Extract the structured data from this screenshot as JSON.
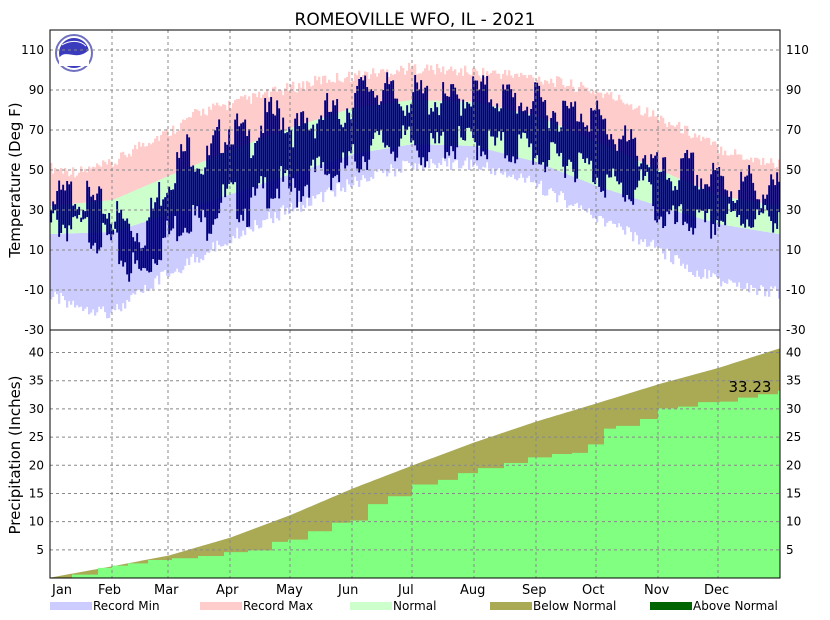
{
  "chart_data": [
    {
      "type": "bar",
      "title": "ROMEOVILLE  WFO, IL - 2021",
      "ylabel": "Temperature (Deg F)",
      "ylim": [
        -30,
        120
      ],
      "yticks": [
        -30,
        -10,
        10,
        30,
        50,
        70,
        90,
        110
      ],
      "grid": true,
      "x_categories": [
        "Jan",
        "Feb",
        "Mar",
        "Apr",
        "May",
        "Jun",
        "Jul",
        "Aug",
        "Sep",
        "Oct",
        "Nov",
        "Dec"
      ],
      "record_max_anchors": [
        [
          1,
          50
        ],
        [
          15,
          48
        ],
        [
          32,
          52
        ],
        [
          46,
          62
        ],
        [
          60,
          68
        ],
        [
          75,
          78
        ],
        [
          91,
          82
        ],
        [
          106,
          86
        ],
        [
          121,
          90
        ],
        [
          136,
          94
        ],
        [
          152,
          96
        ],
        [
          167,
          98
        ],
        [
          182,
          100
        ],
        [
          197,
          99
        ],
        [
          213,
          98
        ],
        [
          228,
          97
        ],
        [
          244,
          95
        ],
        [
          259,
          92
        ],
        [
          274,
          88
        ],
        [
          289,
          83
        ],
        [
          305,
          75
        ],
        [
          320,
          68
        ],
        [
          335,
          60
        ],
        [
          350,
          55
        ],
        [
          365,
          52
        ]
      ],
      "record_min_anchors": [
        [
          1,
          -12
        ],
        [
          15,
          -16
        ],
        [
          32,
          -20
        ],
        [
          46,
          -10
        ],
        [
          60,
          0
        ],
        [
          75,
          8
        ],
        [
          91,
          18
        ],
        [
          106,
          26
        ],
        [
          121,
          32
        ],
        [
          136,
          38
        ],
        [
          152,
          45
        ],
        [
          167,
          50
        ],
        [
          182,
          54
        ],
        [
          197,
          55
        ],
        [
          213,
          54
        ],
        [
          228,
          50
        ],
        [
          244,
          44
        ],
        [
          259,
          36
        ],
        [
          274,
          28
        ],
        [
          289,
          20
        ],
        [
          305,
          12
        ],
        [
          320,
          2
        ],
        [
          335,
          -4
        ],
        [
          350,
          -8
        ],
        [
          365,
          -10
        ]
      ],
      "normal_high_anchors": [
        [
          1,
          32
        ],
        [
          32,
          35
        ],
        [
          60,
          47
        ],
        [
          91,
          60
        ],
        [
          121,
          71
        ],
        [
          152,
          81
        ],
        [
          182,
          85
        ],
        [
          213,
          84
        ],
        [
          244,
          77
        ],
        [
          274,
          64
        ],
        [
          305,
          50
        ],
        [
          335,
          37
        ],
        [
          365,
          32
        ]
      ],
      "normal_low_anchors": [
        [
          1,
          18
        ],
        [
          32,
          19
        ],
        [
          60,
          28
        ],
        [
          91,
          38
        ],
        [
          121,
          48
        ],
        [
          152,
          58
        ],
        [
          182,
          63
        ],
        [
          213,
          62
        ],
        [
          244,
          54
        ],
        [
          274,
          42
        ],
        [
          305,
          32
        ],
        [
          335,
          23
        ],
        [
          365,
          18
        ]
      ],
      "observed_anchors": [
        [
          1,
          26,
          34
        ],
        [
          12,
          24,
          38
        ],
        [
          25,
          20,
          32
        ],
        [
          32,
          14,
          28
        ],
        [
          40,
          4,
          22
        ],
        [
          47,
          0,
          18
        ],
        [
          55,
          14,
          38
        ],
        [
          62,
          22,
          50
        ],
        [
          70,
          30,
          62
        ],
        [
          78,
          24,
          52
        ],
        [
          85,
          36,
          66
        ],
        [
          91,
          38,
          72
        ],
        [
          100,
          32,
          64
        ],
        [
          108,
          42,
          76
        ],
        [
          116,
          44,
          78
        ],
        [
          123,
          40,
          70
        ],
        [
          130,
          48,
          72
        ],
        [
          138,
          52,
          80
        ],
        [
          145,
          50,
          76
        ],
        [
          152,
          56,
          86
        ],
        [
          160,
          62,
          92
        ],
        [
          168,
          66,
          90
        ],
        [
          175,
          64,
          84
        ],
        [
          182,
          66,
          88
        ],
        [
          190,
          60,
          86
        ],
        [
          198,
          66,
          84
        ],
        [
          206,
          64,
          86
        ],
        [
          213,
          66,
          90
        ],
        [
          221,
          64,
          88
        ],
        [
          229,
          62,
          86
        ],
        [
          237,
          64,
          84
        ],
        [
          244,
          60,
          84
        ],
        [
          251,
          56,
          80
        ],
        [
          259,
          58,
          78
        ],
        [
          266,
          54,
          80
        ],
        [
          274,
          50,
          76
        ],
        [
          282,
          44,
          68
        ],
        [
          290,
          40,
          62
        ],
        [
          298,
          46,
          58
        ],
        [
          305,
          30,
          48
        ],
        [
          313,
          24,
          46
        ],
        [
          320,
          28,
          52
        ],
        [
          328,
          22,
          44
        ],
        [
          335,
          28,
          46
        ],
        [
          343,
          26,
          40
        ],
        [
          350,
          30,
          44
        ],
        [
          358,
          26,
          38
        ],
        [
          365,
          32,
          40
        ]
      ],
      "legend": [
        "Record Min",
        "Record Max",
        "Normal"
      ],
      "colors": {
        "record_min": "#ccccff",
        "record_max": "#ffcccc",
        "normal": "#ccffcc",
        "observed": "#000080"
      }
    },
    {
      "type": "area",
      "ylabel": "Precipitation (Inches)",
      "ylim": [
        0,
        44
      ],
      "yticks": [
        5,
        10,
        15,
        20,
        25,
        30,
        35,
        40
      ],
      "grid": true,
      "annotation": "33.23",
      "normal_cumulative": [
        [
          1,
          0.1
        ],
        [
          32,
          2.1
        ],
        [
          60,
          4.0
        ],
        [
          91,
          7.2
        ],
        [
          121,
          11.2
        ],
        [
          152,
          15.9
        ],
        [
          182,
          20.0
        ],
        [
          213,
          24.1
        ],
        [
          244,
          27.8
        ],
        [
          274,
          31.0
        ],
        [
          305,
          34.4
        ],
        [
          335,
          37.3
        ],
        [
          365,
          40.7
        ]
      ],
      "observed_cumulative": [
        [
          1,
          0
        ],
        [
          12,
          0.6
        ],
        [
          25,
          1.8
        ],
        [
          32,
          2.2
        ],
        [
          40,
          2.6
        ],
        [
          50,
          3.2
        ],
        [
          62,
          3.5
        ],
        [
          75,
          3.9
        ],
        [
          88,
          4.6
        ],
        [
          100,
          4.9
        ],
        [
          112,
          6.4
        ],
        [
          120,
          6.8
        ],
        [
          130,
          8.3
        ],
        [
          142,
          9.8
        ],
        [
          151,
          10.2
        ],
        [
          160,
          13.1
        ],
        [
          170,
          14.5
        ],
        [
          182,
          16.6
        ],
        [
          195,
          17.4
        ],
        [
          205,
          18.6
        ],
        [
          215,
          19.5
        ],
        [
          228,
          20.4
        ],
        [
          240,
          21.4
        ],
        [
          252,
          22.0
        ],
        [
          262,
          22.2
        ],
        [
          270,
          23.7
        ],
        [
          278,
          26.5
        ],
        [
          284,
          27.0
        ],
        [
          296,
          28.2
        ],
        [
          305,
          30.1
        ],
        [
          315,
          30.4
        ],
        [
          325,
          31.2
        ],
        [
          336,
          31.3
        ],
        [
          345,
          32.0
        ],
        [
          355,
          32.6
        ],
        [
          365,
          33.23
        ]
      ],
      "legend": [
        "Below Normal",
        "Above Normal"
      ],
      "colors": {
        "observed": "#80ff80",
        "below_normal": "#aaaa55",
        "above_normal": "#006400"
      }
    }
  ]
}
